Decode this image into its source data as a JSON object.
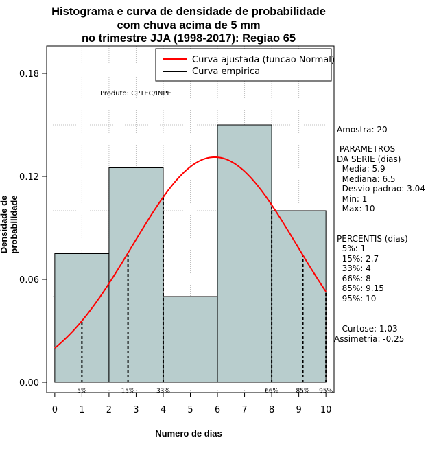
{
  "chart_data": {
    "type": "histogram",
    "title_lines": [
      "Histograma e curva de densidade de probabilidade",
      "com chuva acima de 5 mm",
      "no trimestre JJA (1998-2017): Regiao 65"
    ],
    "xlabel": "Numero de dias",
    "ylabel": "Densidade de probabilidade",
    "xlim": [
      -0.3,
      10.3
    ],
    "ylim": [
      -0.006,
      0.196
    ],
    "x_ticks": [
      0,
      1,
      2,
      3,
      4,
      5,
      6,
      7,
      8,
      9,
      10
    ],
    "x_tick_labels": [
      "0",
      "1",
      "2",
      "3",
      "4",
      "5",
      "6",
      "7",
      "8",
      "9",
      "10"
    ],
    "y_ticks": [
      0.0,
      0.06,
      0.12,
      0.18
    ],
    "y_tick_labels": [
      "0.00",
      "0.06",
      "0.12",
      "0.18"
    ],
    "bins": [
      {
        "from": 0,
        "to": 2,
        "density": 0.075
      },
      {
        "from": 2,
        "to": 4,
        "density": 0.125
      },
      {
        "from": 4,
        "to": 6,
        "density": 0.05
      },
      {
        "from": 6,
        "to": 8,
        "density": 0.15
      },
      {
        "from": 8,
        "to": 10,
        "density": 0.1
      }
    ],
    "bar_color": "#b8cdcd",
    "normal_curve": {
      "mean": 5.9,
      "sd": 3.04,
      "color": "#ff0000",
      "range": [
        0,
        10
      ]
    },
    "hgrid": [
      0.05,
      0.1,
      0.15
    ],
    "vgrid": [
      1,
      2,
      3,
      4,
      5,
      6,
      7,
      8,
      9
    ],
    "percentile_markers": [
      {
        "x": 1,
        "label": "5%"
      },
      {
        "x": 2.7,
        "label": "15%"
      },
      {
        "x": 4,
        "label": "33%"
      },
      {
        "x": 8,
        "label": "66%"
      },
      {
        "x": 9.15,
        "label": "85%"
      },
      {
        "x": 10,
        "label": "95%"
      }
    ],
    "legend": {
      "position": "top-right",
      "entries": [
        {
          "label": "Curva ajustada (funcao Normal)",
          "color": "#ff0000"
        },
        {
          "label": "Curva empirica",
          "color": "#000000"
        }
      ]
    },
    "annotation": "Produto: CPTEC/INPE"
  },
  "stats": {
    "amostra": "Amostra: 20",
    "parametros_title": " PARAMETROS\nDA SERIE (dias)",
    "parametros": "  Media: 5.9\n  Mediana: 6.5\n  Desvio padrao: 3.04\n  Min: 1\n  Max: 10",
    "percentis_title": "PERCENTIS (dias)",
    "percentis": "  5%: 1\n  15%: 2.7\n  33%: 4\n  66%: 8\n  85%: 9.15\n  95%: 10",
    "forma": "   Curtose: 1.03\nAssimetria: -0.25"
  }
}
